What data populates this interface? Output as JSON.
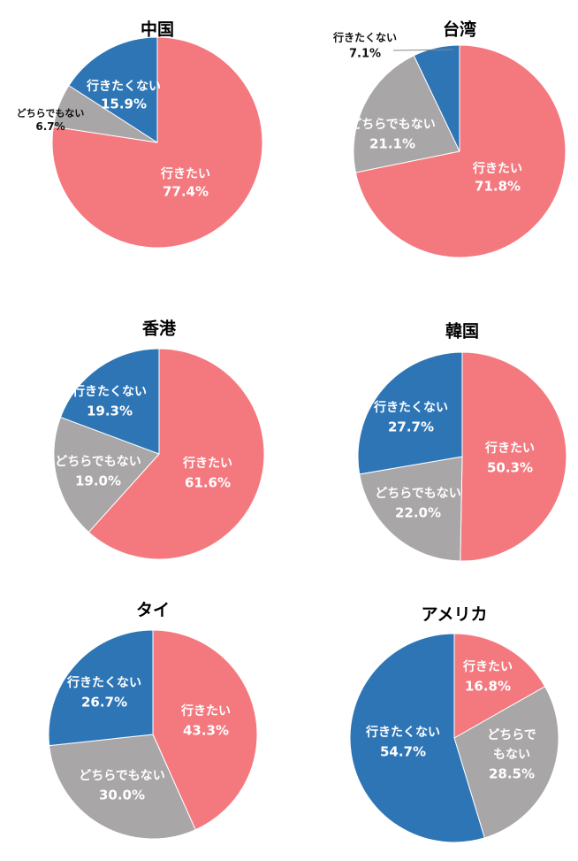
{
  "colors": {
    "want": "#F4797F",
    "neither": "#A8A6A7",
    "not_want": "#2E75B6",
    "leader": "#888888"
  },
  "chart_data": [
    {
      "type": "pie",
      "title": "中国",
      "slices": [
        {
          "key": "want",
          "lines": [
            "行きたい",
            "77.4%"
          ],
          "value": 77.4
        },
        {
          "key": "neither",
          "lines": [
            "どちらでもない",
            "6.7%"
          ],
          "value": 6.7
        },
        {
          "key": "not_want",
          "lines": [
            "行きたくない",
            "15.9%"
          ],
          "value": 15.9
        }
      ]
    },
    {
      "type": "pie",
      "title": "台湾",
      "slices": [
        {
          "key": "want",
          "lines": [
            "行きたい",
            "71.8%"
          ],
          "value": 71.8
        },
        {
          "key": "neither",
          "lines": [
            "どちらでもない",
            "21.1%"
          ],
          "value": 21.1
        },
        {
          "key": "not_want",
          "lines": [
            "行きたくない",
            "7.1%"
          ],
          "value": 7.1
        }
      ]
    },
    {
      "type": "pie",
      "title": "香港",
      "slices": [
        {
          "key": "want",
          "lines": [
            "行きたい",
            "61.6%"
          ],
          "value": 61.6
        },
        {
          "key": "neither",
          "lines": [
            "どちらでもない",
            "19.0%"
          ],
          "value": 19.0
        },
        {
          "key": "not_want",
          "lines": [
            "行きたくない",
            "19.3%"
          ],
          "value": 19.3
        }
      ]
    },
    {
      "type": "pie",
      "title": "韓国",
      "slices": [
        {
          "key": "want",
          "lines": [
            "行きたい",
            "50.3%"
          ],
          "value": 50.3
        },
        {
          "key": "neither",
          "lines": [
            "どちらでもない",
            "22.0%"
          ],
          "value": 22.0
        },
        {
          "key": "not_want",
          "lines": [
            "行きたくない",
            "27.7%"
          ],
          "value": 27.7
        }
      ]
    },
    {
      "type": "pie",
      "title": "タイ",
      "slices": [
        {
          "key": "want",
          "lines": [
            "行きたい",
            "43.3%"
          ],
          "value": 43.3
        },
        {
          "key": "neither",
          "lines": [
            "どちらでもない",
            "30.0%"
          ],
          "value": 30.0
        },
        {
          "key": "not_want",
          "lines": [
            "行きたくない",
            "26.7%"
          ],
          "value": 26.7
        }
      ]
    },
    {
      "type": "pie",
      "title": "アメリカ",
      "slices": [
        {
          "key": "want",
          "lines": [
            "行きたい",
            "16.8%"
          ],
          "value": 16.8
        },
        {
          "key": "neither",
          "lines": [
            "どちらで",
            "もない",
            "28.5%"
          ],
          "value": 28.5
        },
        {
          "key": "not_want",
          "lines": [
            "行きたくない",
            "54.7%"
          ],
          "value": 54.7
        }
      ]
    }
  ]
}
